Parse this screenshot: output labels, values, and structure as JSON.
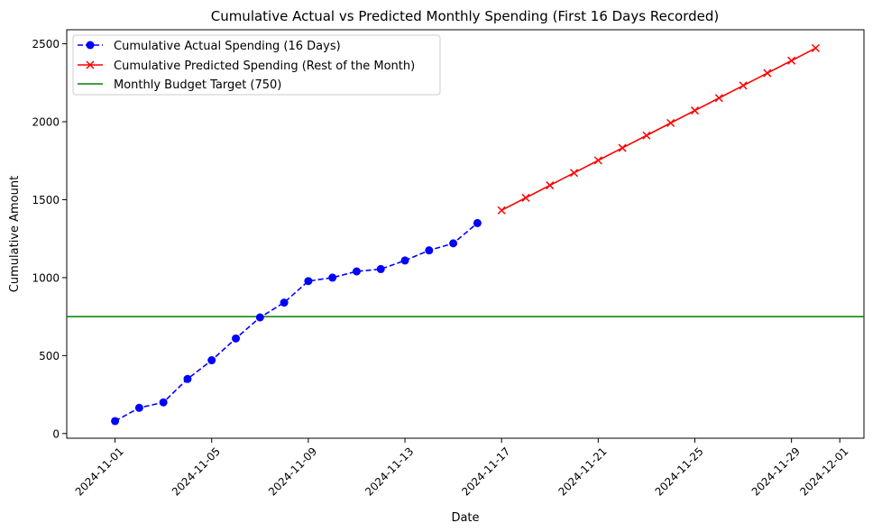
{
  "chart_data": {
    "type": "line",
    "title": "Cumulative Actual vs Predicted Monthly Spending (First 16 Days Recorded)",
    "xlabel": "Date",
    "ylabel": "Cumulative Amount",
    "xlim": [
      "2024-10-30",
      "2024-12-02"
    ],
    "ylim": [
      -30,
      2590
    ],
    "x_ticks": [
      "2024-11-01",
      "2024-11-05",
      "2024-11-09",
      "2024-11-13",
      "2024-11-17",
      "2024-11-21",
      "2024-11-25",
      "2024-11-29",
      "2024-12-01"
    ],
    "y_ticks": [
      0,
      500,
      1000,
      1500,
      2000,
      2500
    ],
    "grid": false,
    "legend_position": "top-left",
    "series": [
      {
        "name": "Cumulative Actual Spending (16 Days)",
        "color": "#0000ff",
        "style": "dashed",
        "marker": "circle",
        "x": [
          "2024-11-01",
          "2024-11-02",
          "2024-11-03",
          "2024-11-04",
          "2024-11-05",
          "2024-11-06",
          "2024-11-07",
          "2024-11-08",
          "2024-11-09",
          "2024-11-10",
          "2024-11-11",
          "2024-11-12",
          "2024-11-13",
          "2024-11-14",
          "2024-11-15",
          "2024-11-16"
        ],
        "values": [
          80,
          165,
          200,
          350,
          470,
          610,
          745,
          840,
          978,
          1000,
          1040,
          1055,
          1110,
          1175,
          1220,
          1350
        ]
      },
      {
        "name": "Cumulative Predicted Spending (Rest of the Month)",
        "color": "#ff0000",
        "style": "solid",
        "marker": "x",
        "x": [
          "2024-11-17",
          "2024-11-18",
          "2024-11-19",
          "2024-11-20",
          "2024-11-21",
          "2024-11-22",
          "2024-11-23",
          "2024-11-24",
          "2024-11-25",
          "2024-11-26",
          "2024-11-27",
          "2024-11-28",
          "2024-11-29",
          "2024-11-30"
        ],
        "values": [
          1432,
          1512,
          1592,
          1672,
          1752,
          1832,
          1912,
          1992,
          2072,
          2152,
          2232,
          2312,
          2392,
          2472
        ]
      }
    ],
    "hlines": [
      {
        "name": "Monthly Budget Target (750)",
        "value": 750,
        "color": "#008000"
      }
    ]
  }
}
